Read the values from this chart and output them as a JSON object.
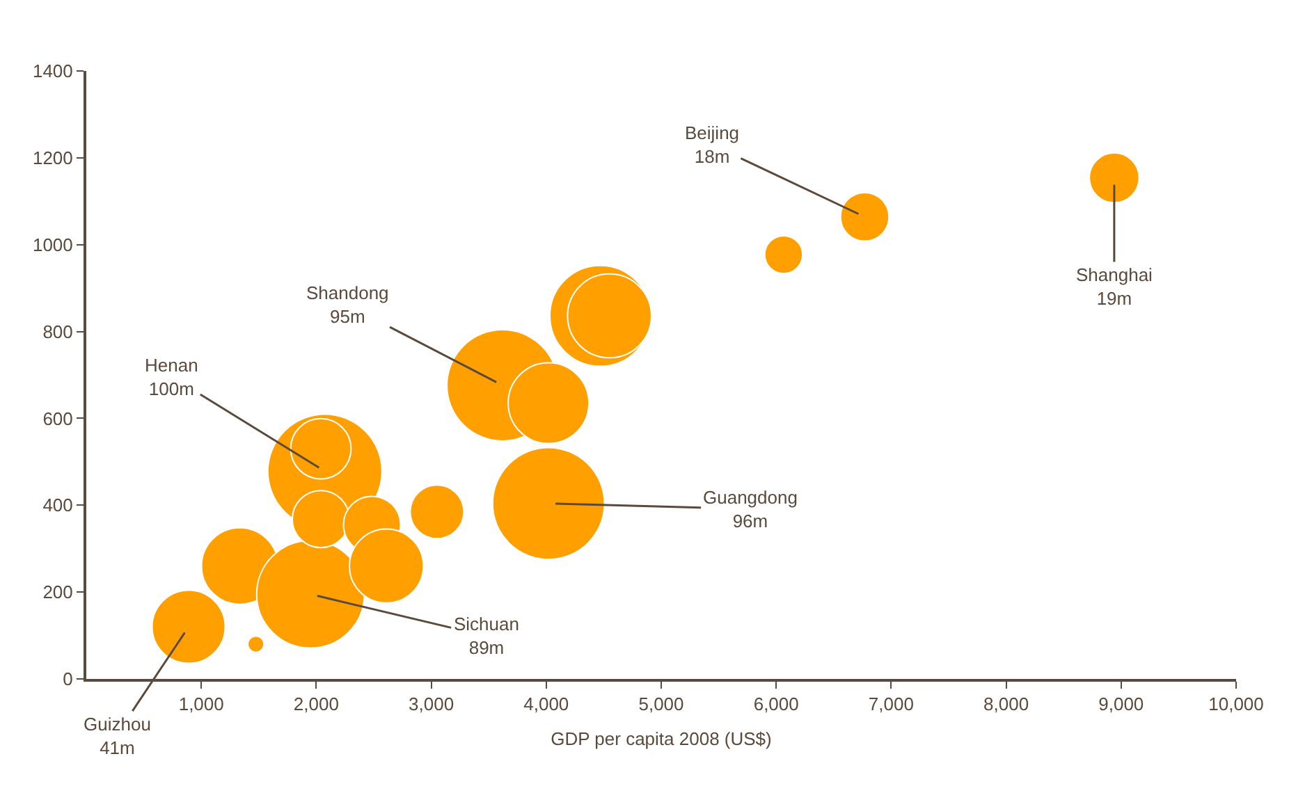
{
  "chart_data": {
    "type": "bubble",
    "xlabel": "GDP per capita 2008 (US$)",
    "color": "#ffa000",
    "x": [
      890,
      1475,
      1335,
      1950,
      2075,
      2040,
      2485,
      2610,
      3050,
      2040,
      3620,
      4020,
      4020,
      4470,
      4550,
      6065,
      6770,
      8940
    ],
    "values": [
      120,
      80,
      260,
      195,
      478,
      368,
      355,
      260,
      385,
      530,
      676,
      635,
      404,
      836,
      836,
      977,
      1064,
      1154
    ],
    "sizes": [
      0.41,
      0.02,
      0.45,
      0.89,
      1.0,
      0.25,
      0.25,
      0.42,
      0.22,
      0.28,
      0.95,
      0.5,
      0.96,
      0.78,
      0.54,
      0.11,
      0.18,
      0.19
    ],
    "xlim": [
      0,
      10000
    ],
    "xticks": [
      {
        "value": 1000,
        "label": "1,000"
      },
      {
        "value": 2000,
        "label": "2,000"
      },
      {
        "value": 3000,
        "label": "3,000"
      },
      {
        "value": 4000,
        "label": "4,000"
      },
      {
        "value": 5000,
        "label": "5,000"
      },
      {
        "value": 6000,
        "label": "6,000"
      },
      {
        "value": 7000,
        "label": "7,000"
      },
      {
        "value": 8000,
        "label": "8,000"
      },
      {
        "value": 9000,
        "label": "9,000"
      },
      {
        "value": 10000,
        "label": "10,000"
      }
    ],
    "ylim": [
      0,
      1400
    ],
    "yticks": [
      0,
      200,
      400,
      600,
      800,
      1000,
      1200,
      1400
    ],
    "annotations": [
      {
        "text": "Guizhou\n41m",
        "x": 890,
        "y": 120
      },
      {
        "text": "Henan\n100m",
        "x": 2075,
        "y": 478
      },
      {
        "text": "Shandong\n95m",
        "x": 3620,
        "y": 676
      },
      {
        "text": "Sichuan\n89m",
        "x": 1950,
        "y": 195
      },
      {
        "text": "Guangdong\n96m",
        "x": 4020,
        "y": 404
      },
      {
        "text": "Beijing\n18m",
        "x": 6770,
        "y": 1064
      },
      {
        "text": "Shanghai\n19m",
        "x": 8940,
        "y": 1154
      }
    ]
  }
}
